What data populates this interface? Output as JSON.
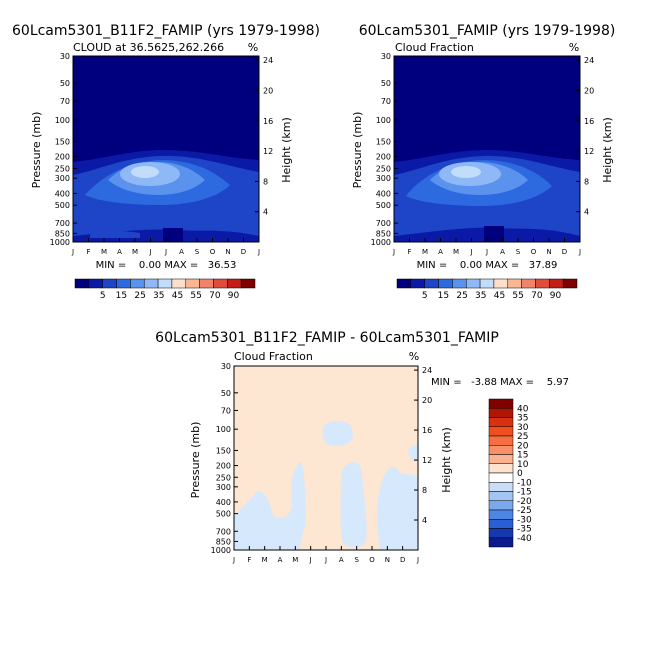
{
  "colors": {
    "diff_positive_fill": "#fde6d2",
    "diff_negative_fill": "#d6e8fb",
    "seq_scale": [
      "#00007f",
      "#0a1aa6",
      "#1e44c8",
      "#2d6ae0",
      "#5a92ee",
      "#8fb9f6",
      "#c2dcfb",
      "#fde0c9",
      "#fbb694",
      "#f3826a",
      "#e04d3a",
      "#c21d16",
      "#7f0000"
    ]
  },
  "panels": [
    {
      "title": "60Lcam5301_B11F2_FAMIP (yrs 1979-1998)",
      "subtitle": "CLOUD at 36.5625,262.266",
      "units": "%",
      "stats": "MIN =    0.00 MAX =   36.53",
      "scale_labels": [
        "5",
        "15",
        "25",
        "35",
        "45",
        "55",
        "70",
        "90"
      ]
    },
    {
      "title": "60Lcam5301_FAMIP (yrs 1979-1998)",
      "subtitle": "Cloud Fraction",
      "units": "%",
      "stats": "MIN =    0.00 MAX =   37.89",
      "scale_labels": [
        "5",
        "15",
        "25",
        "35",
        "45",
        "55",
        "70",
        "90"
      ]
    },
    {
      "title": "60Lcam5301_B11F2_FAMIP - 60Lcam5301_FAMIP",
      "subtitle": "Cloud Fraction",
      "units": "%",
      "stats": "MIN =   -3.88 MAX =    5.97",
      "scale_labels": [
        "40",
        "35",
        "30",
        "25",
        "20",
        "15",
        "10",
        "0",
        "-10",
        "-15",
        "-20",
        "-25",
        "-30",
        "-35",
        "-40"
      ],
      "scale_colors": [
        "#800000",
        "#b01606",
        "#d9300f",
        "#f0501f",
        "#f56f43",
        "#f89068",
        "#fbb291",
        "#fde2cd",
        "#ffffff",
        "#c9ddf6",
        "#a4c5f1",
        "#7aa8ec",
        "#4f86e3",
        "#2a5fd4",
        "#1739b0",
        "#0a1a8a"
      ]
    }
  ],
  "chart_data": [
    {
      "type": "heatmap",
      "title": "60Lcam5301_B11F2_FAMIP (yrs 1979-1998)",
      "subtitle": "CLOUD at 36.5625,262.266",
      "x_ticks": [
        "J",
        "F",
        "M",
        "A",
        "M",
        "J",
        "J",
        "A",
        "S",
        "O",
        "N",
        "D",
        "J"
      ],
      "y_left_ticks": [
        "30",
        "50",
        "70",
        "100",
        "150",
        "200",
        "250",
        "300",
        "400",
        "500",
        "700",
        "850",
        "1000"
      ],
      "y_right_ticks": [
        "24",
        "20",
        "16",
        "12",
        "8",
        "4"
      ],
      "ylabel_left": "Pressure (mb)",
      "ylabel_right": "Height (km)",
      "units": "%",
      "min": 0.0,
      "max": 36.53,
      "peak": {
        "month": 6.5,
        "pressure_mb": 250,
        "value": 36.53
      }
    },
    {
      "type": "heatmap",
      "title": "60Lcam5301_FAMIP (yrs 1979-1998)",
      "subtitle": "Cloud Fraction",
      "x_ticks": [
        "J",
        "F",
        "M",
        "A",
        "M",
        "J",
        "J",
        "A",
        "S",
        "O",
        "N",
        "D",
        "J"
      ],
      "y_left_ticks": [
        "30",
        "50",
        "70",
        "100",
        "150",
        "200",
        "250",
        "300",
        "400",
        "500",
        "700",
        "850",
        "1000"
      ],
      "y_right_ticks": [
        "24",
        "20",
        "16",
        "12",
        "8",
        "4"
      ],
      "ylabel_left": "Pressure (mb)",
      "ylabel_right": "Height (km)",
      "units": "%",
      "min": 0.0,
      "max": 37.89,
      "peak": {
        "month": 6.5,
        "pressure_mb": 250,
        "value": 37.89
      }
    },
    {
      "type": "heatmap",
      "title": "60Lcam5301_B11F2_FAMIP - 60Lcam5301_FAMIP",
      "subtitle": "Cloud Fraction",
      "x_ticks": [
        "J",
        "F",
        "M",
        "A",
        "M",
        "J",
        "J",
        "A",
        "S",
        "O",
        "N",
        "D",
        "J"
      ],
      "y_left_ticks": [
        "30",
        "50",
        "70",
        "100",
        "150",
        "200",
        "250",
        "300",
        "400",
        "500",
        "700",
        "850",
        "1000"
      ],
      "y_right_ticks": [
        "24",
        "20",
        "16",
        "12",
        "8",
        "4"
      ],
      "ylabel_left": "Pressure (mb)",
      "ylabel_right": "Height (km)",
      "units": "%",
      "min": -3.88,
      "max": 5.97
    }
  ]
}
